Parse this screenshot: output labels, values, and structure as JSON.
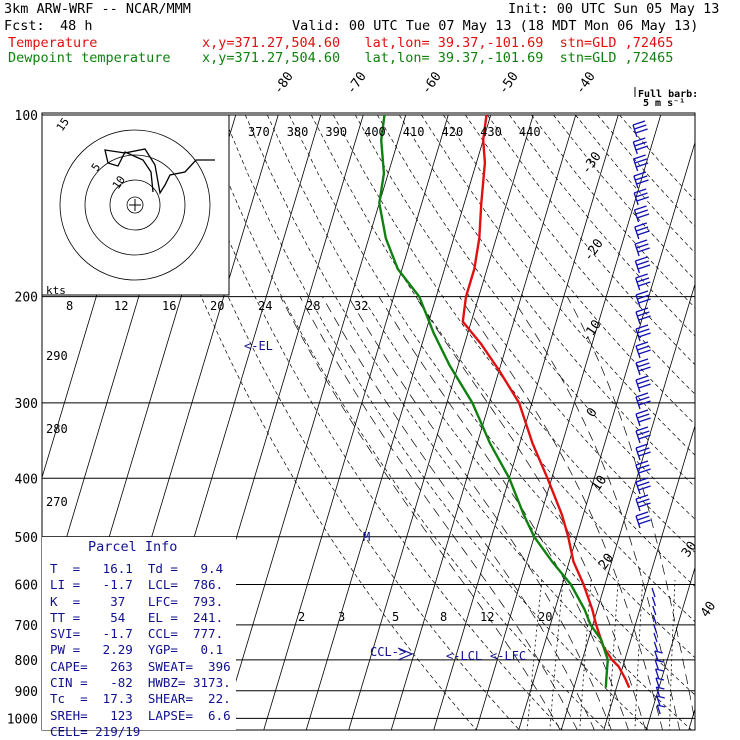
{
  "header": {
    "model": "3km ARW-WRF -- NCAR/MMM",
    "init": "Init: 00 UTC Sun 05 May 13",
    "fcst_label": "Fcst:",
    "fcst_value": "48 h",
    "valid": "Valid: 00 UTC Tue 07 May 13 (18 MDT Mon 06 May 13)",
    "temperature_label": "Temperature",
    "dewpoint_label": "Dewpoint temperature",
    "temp_loc": "x,y=371.27,504.60   lat,lon= 39.37,-101.69  stn=GLD ,72465",
    "dew_loc": "x,y=371.27,504.60   lat,lon= 39.37,-101.69  stn=GLD ,72465"
  },
  "barb_legend": [
    "Full barb:",
    "5 m s⁻¹"
  ],
  "colors": {
    "temperature": "#e01010",
    "dewpoint": "#108010",
    "parcel": "#101090",
    "wind": "#1010b0"
  },
  "chart_data": {
    "type": "line",
    "chart_kind": "skew-T log-P sounding",
    "pressure_labels": [
      100,
      200,
      300,
      400,
      500,
      600,
      700,
      800,
      900,
      1000
    ],
    "pressure_range": [
      100,
      1000
    ],
    "skewed_isotherm_labels": [
      -80,
      -70,
      -60,
      -50,
      -40,
      -30,
      -20,
      -10,
      0,
      10,
      20,
      30,
      40
    ],
    "theta_labels_top": [
      "370",
      "380",
      "390",
      "400",
      "410",
      "420",
      "430",
      "440"
    ],
    "theta_labels_left": [
      "290",
      "280",
      "270"
    ],
    "mixing_ratio_labels": [
      "2",
      "3",
      "5",
      "8",
      "12",
      "20"
    ],
    "hodograph": {
      "speed_unit": "kts",
      "ring_labels": [
        "5",
        "10",
        "15"
      ],
      "speed_ticks": [
        "8",
        "12",
        "16",
        "20",
        "24",
        "28",
        "32"
      ]
    },
    "annotations": [
      "EL",
      "M",
      "CCL",
      "LCL",
      "LFC"
    ],
    "series": [
      {
        "name": "Temperature",
        "points": [
          [
            889,
            13.0
          ],
          [
            860,
            11.5
          ],
          [
            820,
            9.0
          ],
          [
            800,
            7.0
          ],
          [
            760,
            4.0
          ],
          [
            700,
            0.8
          ],
          [
            660,
            -1.2
          ],
          [
            600,
            -5.0
          ],
          [
            550,
            -9.0
          ],
          [
            500,
            -12.0
          ],
          [
            460,
            -15.0
          ],
          [
            400,
            -21.0
          ],
          [
            350,
            -27.0
          ],
          [
            300,
            -33.0
          ],
          [
            265,
            -40.0
          ],
          [
            240,
            -46.0
          ],
          [
            220,
            -52.0
          ],
          [
            200,
            -53.0
          ],
          [
            180,
            -53.0
          ],
          [
            160,
            -54.0
          ],
          [
            140,
            -56.0
          ],
          [
            120,
            -58.0
          ],
          [
            110,
            -60.0
          ],
          [
            100,
            -61.0
          ]
        ]
      },
      {
        "name": "Dewpoint temperature",
        "points": [
          [
            889,
            7.5
          ],
          [
            860,
            7.0
          ],
          [
            800,
            6.0
          ],
          [
            740,
            3.0
          ],
          [
            700,
            -0.5
          ],
          [
            660,
            -3.0
          ],
          [
            600,
            -8.0
          ],
          [
            550,
            -14.0
          ],
          [
            500,
            -20.0
          ],
          [
            460,
            -24.0
          ],
          [
            400,
            -30.0
          ],
          [
            350,
            -37.0
          ],
          [
            300,
            -44.0
          ],
          [
            260,
            -52.0
          ],
          [
            230,
            -58.0
          ],
          [
            200,
            -64.0
          ],
          [
            180,
            -71.0
          ],
          [
            160,
            -76.0
          ],
          [
            140,
            -80.0
          ],
          [
            125,
            -81.0
          ],
          [
            110,
            -84.0
          ],
          [
            100,
            -85.0
          ]
        ]
      }
    ]
  },
  "parcel_info": {
    "title": "Parcel Info",
    "rows": [
      "T  =   16.1  Td =   9.4",
      "LI =   -1.7  LCL=  786.",
      "K  =    37   LFC=  793.",
      "TT =    54   EL =  241.",
      "SVI=   -1.7  CCL=  777.",
      "PW =   2.29  YGP=   0.1",
      "CAPE=   263  SWEAT=  396",
      "CIN =   -82  HWBZ= 3173.",
      "Tc  =  17.3  SHEAR=  22.",
      "SREH=   123  LAPSE=  6.6",
      "CELL= 219/19"
    ]
  }
}
